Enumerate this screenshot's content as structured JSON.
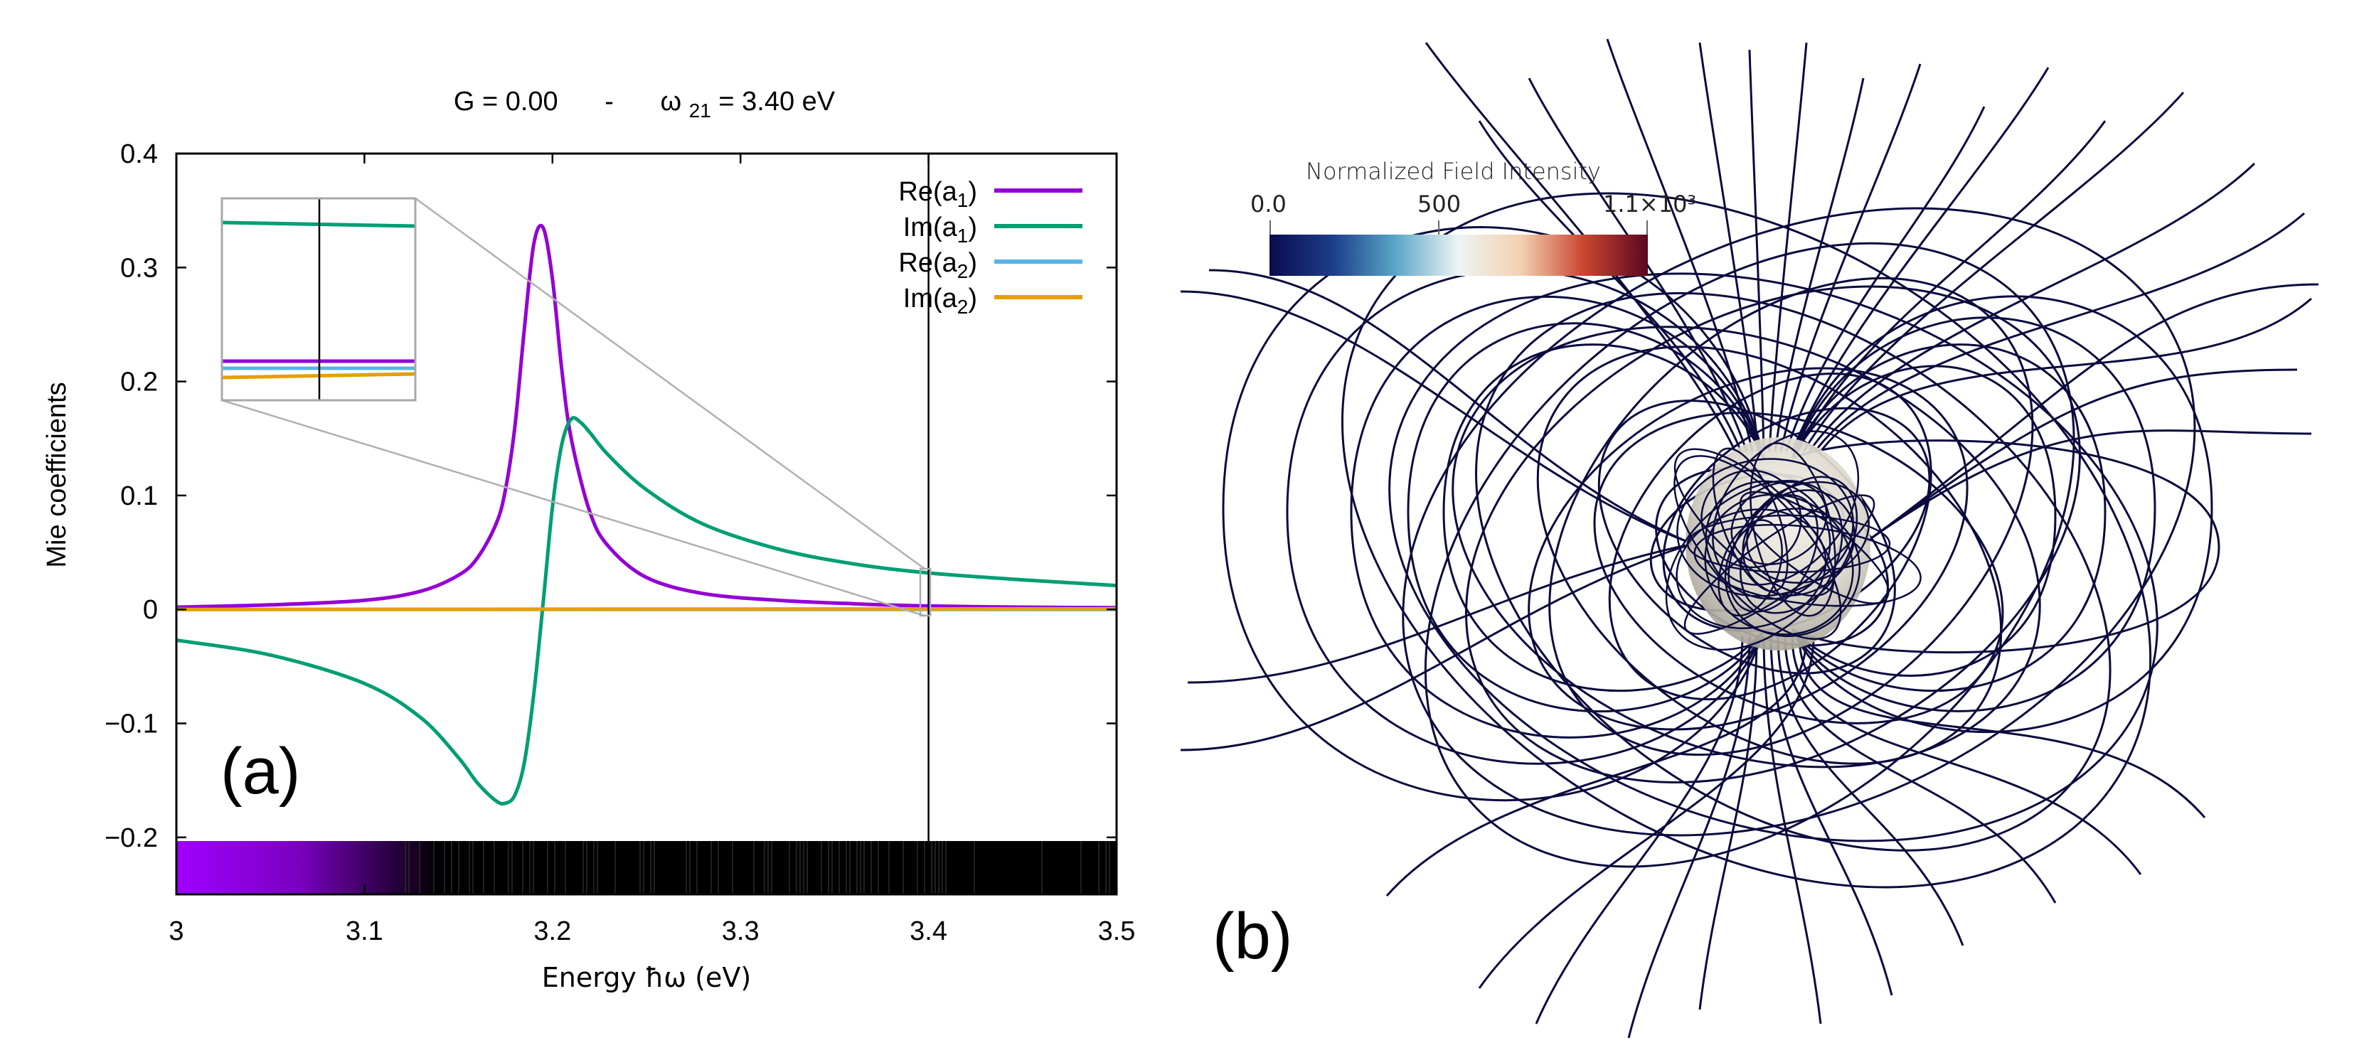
{
  "chart_data": [
    {
      "type": "line",
      "panel_label": "(a)",
      "title": "G = 0.00    -    ω₂₁=  3.40 eV",
      "title_parts": {
        "left": "G = 0.00",
        "dash": "-",
        "omega": "ω",
        "omega_sub": "21",
        "right": "=  3.40 eV"
      },
      "xlabel": "Energy ħω  (eV)",
      "ylabel": "Mie coefficients",
      "xlim": [
        3.0,
        3.5
      ],
      "ylim": [
        -0.25,
        0.4
      ],
      "x_ticks": [
        {
          "v": 3.0,
          "label": "3"
        },
        {
          "v": 3.1,
          "label": "3.1"
        },
        {
          "v": 3.2,
          "label": "3.2"
        },
        {
          "v": 3.3,
          "label": "3.3"
        },
        {
          "v": 3.4,
          "label": "3.4"
        },
        {
          "v": 3.5,
          "label": "3.5"
        }
      ],
      "y_ticks": [
        {
          "v": 0.4,
          "label": "0.4"
        },
        {
          "v": 0.3,
          "label": "0.3"
        },
        {
          "v": 0.2,
          "label": "0.2"
        },
        {
          "v": 0.1,
          "label": "0.1"
        },
        {
          "v": 0.0,
          "label": "0"
        },
        {
          "v": -0.1,
          "label": "−0.1"
        },
        {
          "v": -0.2,
          "label": "−0.2"
        }
      ],
      "vertical_marker_x": 3.4,
      "grid": false,
      "legend_position": "top-right",
      "series": [
        {
          "name": "Re(a₁)",
          "label_base": "Re(a",
          "label_sub": "1",
          "label_end": ")",
          "color": "#9400d3",
          "x": [
            3.0,
            3.05,
            3.1,
            3.13,
            3.15,
            3.16,
            3.17,
            3.175,
            3.18,
            3.185,
            3.19,
            3.195,
            3.2,
            3.205,
            3.21,
            3.22,
            3.23,
            3.25,
            3.28,
            3.32,
            3.36,
            3.4,
            3.45,
            3.5
          ],
          "y": [
            0.002,
            0.004,
            0.008,
            0.016,
            0.03,
            0.045,
            0.075,
            0.105,
            0.16,
            0.245,
            0.32,
            0.335,
            0.29,
            0.21,
            0.15,
            0.085,
            0.055,
            0.028,
            0.014,
            0.008,
            0.005,
            0.003,
            0.002,
            0.0015
          ]
        },
        {
          "name": "Im(a₁)",
          "label_base": "Im(a",
          "label_sub": "1",
          "label_end": ")",
          "color": "#009e73",
          "x": [
            3.0,
            3.05,
            3.1,
            3.13,
            3.15,
            3.16,
            3.17,
            3.175,
            3.18,
            3.185,
            3.19,
            3.195,
            3.2,
            3.205,
            3.21,
            3.215,
            3.22,
            3.23,
            3.25,
            3.28,
            3.32,
            3.36,
            3.4,
            3.45,
            3.5
          ],
          "y": [
            -0.027,
            -0.04,
            -0.065,
            -0.095,
            -0.13,
            -0.152,
            -0.168,
            -0.17,
            -0.163,
            -0.135,
            -0.075,
            0.005,
            0.09,
            0.145,
            0.167,
            0.164,
            0.155,
            0.135,
            0.105,
            0.075,
            0.053,
            0.04,
            0.032,
            0.026,
            0.021
          ]
        },
        {
          "name": "Re(a₂)",
          "label_base": "Re(a",
          "label_sub": "2",
          "label_end": ")",
          "color": "#56b4e9",
          "x": [
            3.0,
            3.5
          ],
          "y": [
            0.0,
            0.0
          ]
        },
        {
          "name": "Im(a₂)",
          "label_base": "Im(a",
          "label_sub": "2",
          "label_end": ")",
          "color": "#e69f00",
          "x": [
            3.0,
            3.5
          ],
          "y": [
            0.0,
            0.0005
          ]
        }
      ]
    },
    {
      "type": "other",
      "panel_label": "(b)",
      "colorbar": {
        "title": "Normalized Field Intensity",
        "min_label": "0.0",
        "mid_label": "500",
        "max_label": "1.1×10³",
        "colors": [
          "#0b0b4e",
          "#1c3d8a",
          "#5aa6c9",
          "#eef5f5",
          "#f2cfae",
          "#c8442f",
          "#5a0820"
        ]
      }
    }
  ]
}
